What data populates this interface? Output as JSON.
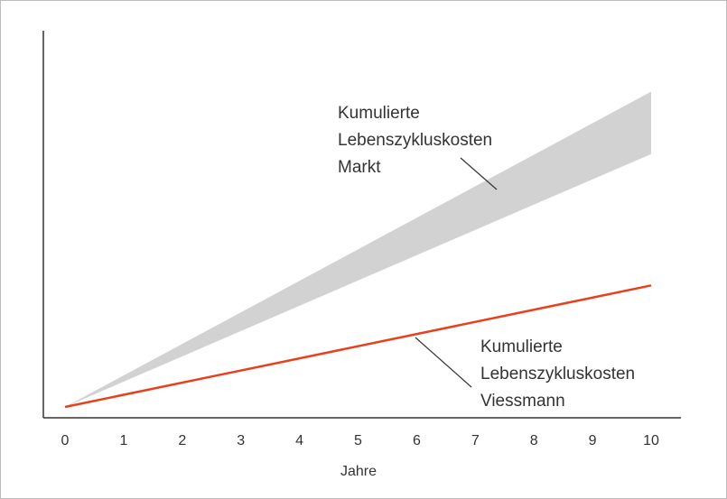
{
  "chart_data": {
    "type": "area",
    "x": [
      0,
      10
    ],
    "xlabel": "Jahre",
    "ylabel": "",
    "xlim": [
      0,
      10
    ],
    "ylim": [
      0,
      100
    ],
    "x_ticks": [
      "0",
      "1",
      "2",
      "3",
      "4",
      "5",
      "6",
      "7",
      "8",
      "9",
      "10"
    ],
    "y_ticks_shown": false,
    "grid": false,
    "series": [
      {
        "kind": "band",
        "color": "#d2d2d2",
        "x": [
          0,
          10
        ],
        "upper": [
          0,
          96
        ],
        "lower": [
          0,
          77
        ]
      },
      {
        "kind": "line",
        "color": "#e8401c",
        "x": [
          0,
          10
        ],
        "values": [
          0,
          37
        ]
      }
    ],
    "annotations": [
      {
        "lines": [
          "Kumulierte",
          "Lebenszykluskosten",
          "Markt"
        ]
      },
      {
        "lines": [
          "Kumulierte",
          "Lebenszykluskosten",
          "Viessmann"
        ]
      }
    ]
  }
}
